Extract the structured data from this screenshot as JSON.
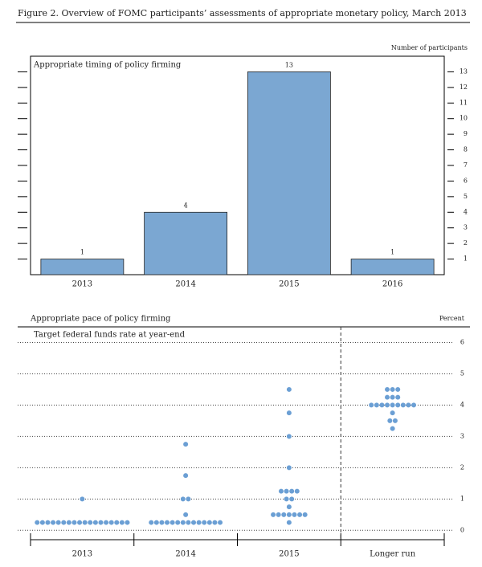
{
  "title": "Figure 2. Overview of FOMC participants’ assessments of appropriate monetary policy, March 2013",
  "chart_data": [
    {
      "type": "bar",
      "title": "Appropriate timing of policy firming",
      "y_axis_label": "Number of participants",
      "categories": [
        "2013",
        "2014",
        "2015",
        "2016"
      ],
      "values": [
        1,
        4,
        13,
        1
      ],
      "color": "#7ba7d2",
      "ylim": [
        0,
        14
      ],
      "yticks": [
        1,
        2,
        3,
        4,
        5,
        6,
        7,
        8,
        9,
        10,
        11,
        12,
        13
      ]
    },
    {
      "type": "dot",
      "title": "Appropriate pace of policy firming",
      "subtitle": "Target federal funds rate at year-end",
      "y_axis_label": "Percent",
      "categories": [
        "2013",
        "2014",
        "2015",
        "Longer run"
      ],
      "values": [
        [
          0.25,
          0.25,
          0.25,
          0.25,
          0.25,
          0.25,
          0.25,
          0.25,
          0.25,
          0.25,
          0.25,
          0.25,
          0.25,
          0.25,
          0.25,
          0.25,
          0.25,
          0.25,
          1
        ],
        [
          0.25,
          0.25,
          0.25,
          0.25,
          0.25,
          0.25,
          0.25,
          0.25,
          0.25,
          0.25,
          0.25,
          0.25,
          0.25,
          0.25,
          0.5,
          1,
          1,
          1.75,
          2.75
        ],
        [
          0.25,
          0.5,
          0.5,
          0.5,
          0.5,
          0.5,
          0.5,
          0.5,
          0.75,
          1,
          1,
          1.25,
          1.25,
          1.25,
          1.25,
          2,
          3,
          3.75,
          4.5
        ],
        [
          3.25,
          3.5,
          3.5,
          3.75,
          4,
          4,
          4,
          4,
          4,
          4,
          4,
          4,
          4,
          4.25,
          4.25,
          4.25,
          4.5,
          4.5,
          4.5
        ]
      ],
      "color": "#6b9fd4",
      "ylim": [
        -0.3,
        6.5
      ],
      "yticks": [
        0,
        1,
        2,
        3,
        4,
        5,
        6
      ],
      "grid": true
    }
  ]
}
